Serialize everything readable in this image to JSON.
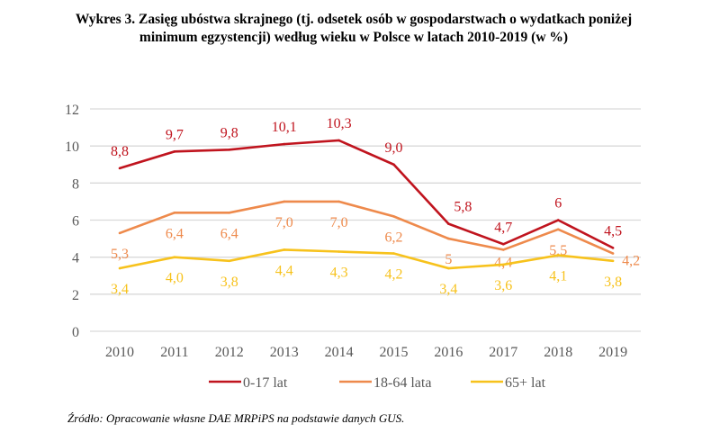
{
  "chart_data": {
    "type": "line",
    "title": "Wykres 3. Zasięg ubóstwa skrajnego (tj. odsetek osób w gospodarstwach o wydatkach poniżej minimum egzystencji) według wieku w Polsce w latach 2010-2019 (w %)",
    "title_line1": "Wykres 3. Zasięg ubóstwa skrajnego (tj. odsetek osób w gospodarstwach o wydatkach poniżej",
    "title_line2": "minimum egzystencji) według wieku w Polsce w latach 2010-2019 (w %)",
    "x": [
      "2010",
      "2011",
      "2012",
      "2013",
      "2014",
      "2015",
      "2016",
      "2017",
      "2018",
      "2019"
    ],
    "ylim": [
      0,
      12
    ],
    "yticks": [
      0,
      2,
      4,
      6,
      8,
      10,
      12
    ],
    "grid": true,
    "legend": "bottom",
    "series": [
      {
        "name": "0-17 lat",
        "color": "#c0141e",
        "values": [
          8.8,
          9.7,
          9.8,
          10.1,
          10.3,
          9.0,
          5.8,
          4.7,
          6,
          4.5
        ],
        "labels": [
          "8,8",
          "9,7",
          "9,8",
          "10,1",
          "10,3",
          "9,0",
          "5,8",
          "4,7",
          "6",
          "4,5"
        ]
      },
      {
        "name": "18-64 lata",
        "color": "#ee8a4c",
        "values": [
          5.3,
          6.4,
          6.4,
          7.0,
          7.0,
          6.2,
          5,
          4.4,
          5.5,
          4.2
        ],
        "labels": [
          "5,3",
          "6,4",
          "6,4",
          "7,0",
          "7,0",
          "6,2",
          "5",
          "4,4",
          "5,5",
          "4,2"
        ]
      },
      {
        "name": "65+ lat",
        "color": "#f7c21c",
        "values": [
          3.4,
          4.0,
          3.8,
          4.4,
          4.3,
          4.2,
          3.4,
          3.6,
          4.1,
          3.8
        ],
        "labels": [
          "3,4",
          "4,0",
          "3,8",
          "4,4",
          "4,3",
          "4,2",
          "3,4",
          "3,6",
          "4,1",
          "3,8"
        ]
      }
    ],
    "source": "Źródło: Opracowanie własne DAE MRPiPS na podstawie danych GUS."
  }
}
